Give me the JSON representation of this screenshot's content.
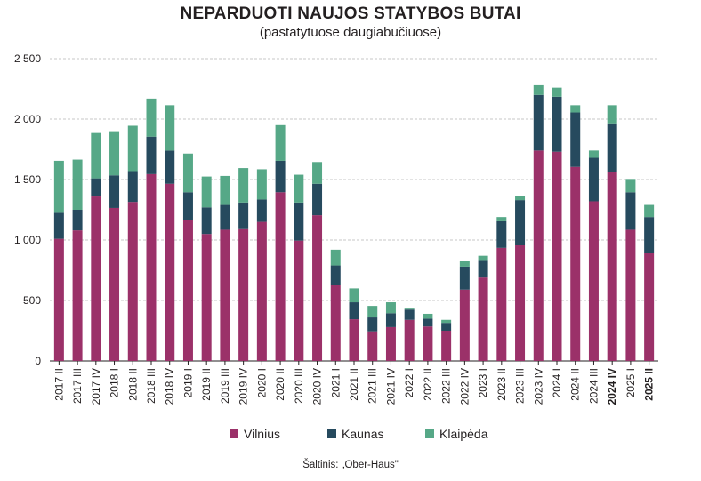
{
  "header": {
    "title": "NEPARDUOTI NAUJOS STATYBOS BUTAI",
    "subtitle": "(pastatytuose daugiabučiuose)"
  },
  "source": "Šaltinis: „Ober-Haus\"",
  "chart_data": {
    "type": "bar",
    "stacked": true,
    "categories": [
      "2017 II",
      "2017 III",
      "2017 IV",
      "2018 I",
      "2018 II",
      "2018 III",
      "2018 IV",
      "2019 I",
      "2019 II",
      "2019 III",
      "2019 IV",
      "2020 I",
      "2020 II",
      "2020 III",
      "2020 IV",
      "2021 I",
      "2021 II",
      "2021 III",
      "2021 IV",
      "2022 I",
      "2022 II",
      "2022 III",
      "2022 IV",
      "2023 I",
      "2023 II",
      "2023 III",
      "2023 IV",
      "2024 I",
      "2024 II",
      "2024 III",
      "2024 IV",
      "2025 I",
      "2025 II"
    ],
    "bold_categories": [
      "2024 IV",
      "2025 II"
    ],
    "series": [
      {
        "name": "Vilnius",
        "color": "#9b3169",
        "values": [
          1010,
          1080,
          1360,
          1265,
          1315,
          1545,
          1465,
          1165,
          1050,
          1085,
          1090,
          1150,
          1395,
          995,
          1205,
          630,
          345,
          245,
          280,
          340,
          285,
          250,
          590,
          690,
          935,
          960,
          1740,
          1730,
          1605,
          1320,
          1565,
          1085,
          895
        ]
      },
      {
        "name": "Kaunas",
        "color": "#264a5e",
        "values": [
          215,
          170,
          150,
          270,
          255,
          310,
          275,
          230,
          220,
          205,
          220,
          185,
          260,
          315,
          260,
          160,
          140,
          115,
          115,
          85,
          65,
          65,
          190,
          145,
          220,
          370,
          460,
          455,
          450,
          360,
          400,
          310,
          295
        ]
      },
      {
        "name": "Klaipėda",
        "color": "#56a887",
        "values": [
          430,
          415,
          375,
          365,
          375,
          315,
          375,
          320,
          255,
          240,
          285,
          250,
          295,
          230,
          180,
          130,
          115,
          95,
          90,
          15,
          40,
          25,
          50,
          35,
          35,
          35,
          80,
          75,
          60,
          60,
          150,
          110,
          100
        ]
      }
    ],
    "y_ticks": [
      "0",
      "500",
      "1 000",
      "1 500",
      "2 000",
      "2 500"
    ],
    "y_tick_values": [
      0,
      500,
      1000,
      1500,
      2000,
      2500
    ],
    "ylim": [
      0,
      2500
    ],
    "grid": true,
    "legend_position": "bottom"
  }
}
